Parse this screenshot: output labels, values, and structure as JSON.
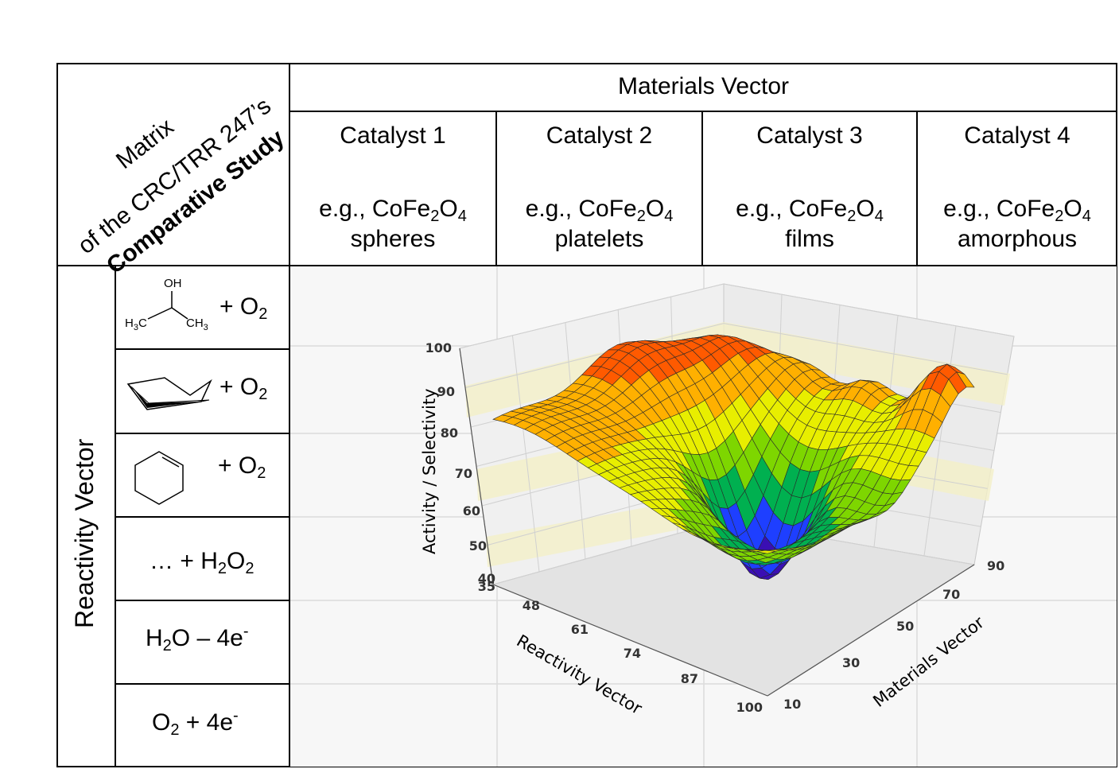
{
  "corner": {
    "line1": "Matrix",
    "line2": "of the CRC/TRR 247’s",
    "line3": "Comparative Study"
  },
  "materials_header": "Materials Vector",
  "catalysts": [
    {
      "name": "Catalyst 1",
      "eg": "e.g., CoFe",
      "sub1": "2",
      "o": "O",
      "sub2": "4",
      "morph": "spheres"
    },
    {
      "name": "Catalyst 2",
      "eg": "e.g., CoFe",
      "sub1": "2",
      "o": "O",
      "sub2": "4",
      "morph": "platelets"
    },
    {
      "name": "Catalyst 3",
      "eg": "e.g., CoFe",
      "sub1": "2",
      "o": "O",
      "sub2": "4",
      "morph": "films"
    },
    {
      "name": "Catalyst 4",
      "eg": "e.g., CoFe",
      "sub1": "2",
      "o": "O",
      "sub2": "4",
      "morph": "amorphous"
    }
  ],
  "reactivity_header": "Reactivity Vector",
  "reactions": {
    "r1": {
      "oh": "OH",
      "h3c": "H",
      "h3c_sub": "3",
      "h3c_c": "C",
      "ch3": "CH",
      "ch3_sub": "3",
      "plus": "+ O",
      "sub": "2"
    },
    "r2": {
      "plus": "+ O",
      "sub": "2"
    },
    "r3": {
      "plus": "+ O",
      "sub": "2"
    },
    "r4": {
      "pre": "… + H",
      "sub1": "2",
      "mid": "O",
      "sub2": "2"
    },
    "r5": {
      "pre": "H",
      "sub1": "2",
      "mid": "O – 4e",
      "sup": "-"
    },
    "r6": {
      "pre": "O",
      "sub1": "2",
      "mid": " + 4e",
      "sup": "-"
    }
  },
  "chart_data": {
    "type": "surface3d",
    "zlabel": "Activity / Selectivity",
    "xlabel": "Reactivity Vector",
    "ylabel": "Materials Vector",
    "z_ticks": [
      "100",
      "90",
      "80",
      "70",
      "60",
      "50",
      "40"
    ],
    "x_ticks": [
      "35",
      "48",
      "61",
      "74",
      "87",
      "100"
    ],
    "y_ticks": [
      "10",
      "30",
      "50",
      "70",
      "90"
    ],
    "zlim": [
      40,
      100
    ],
    "xlim": [
      35,
      100
    ],
    "ylim": [
      10,
      90
    ],
    "colormap": [
      "#3a0fb3",
      "#1e3fff",
      "#00b050",
      "#7ed600",
      "#e8ee00",
      "#ffb000",
      "#ff5a00",
      "#e01010"
    ]
  }
}
